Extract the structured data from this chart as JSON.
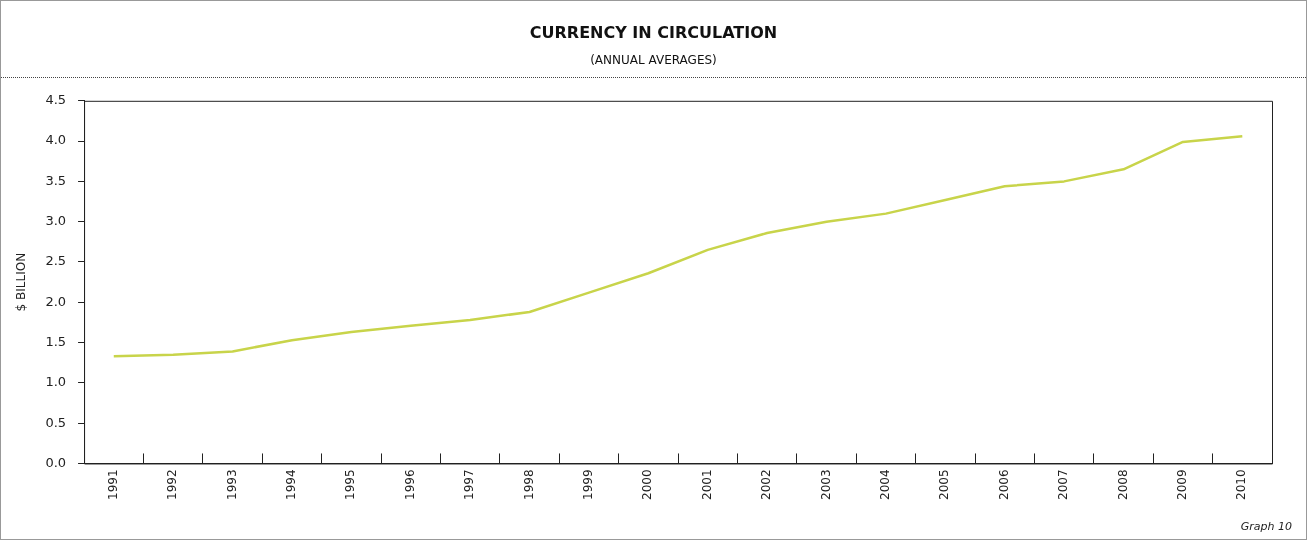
{
  "chart_data": {
    "type": "line",
    "title": "CURRENCY IN CIRCULATION",
    "subtitle": "(ANNUAL AVERAGES)",
    "ylabel": "$ BILLION",
    "categories": [
      "1991",
      "1992",
      "1993",
      "1994",
      "1995",
      "1996",
      "1997",
      "1998",
      "1999",
      "2000",
      "2001",
      "2002",
      "2003",
      "2004",
      "2005",
      "2006",
      "2007",
      "2008",
      "2009",
      "2010"
    ],
    "series": [
      {
        "color": "#c8d44a",
        "values": [
          1.33,
          1.35,
          1.39,
          1.53,
          1.63,
          1.71,
          1.78,
          1.88,
          2.12,
          2.36,
          2.65,
          2.86,
          3.0,
          3.1,
          3.27,
          3.44,
          3.5,
          3.65,
          3.99,
          4.06
        ]
      }
    ],
    "ylim": [
      0,
      4.5
    ],
    "yticks": [
      {
        "value": 0,
        "label": "0.0"
      },
      {
        "value": 0.5,
        "label": "0.5"
      },
      {
        "value": 1,
        "label": "1.0"
      },
      {
        "value": 1.5,
        "label": "1.5"
      },
      {
        "value": 2,
        "label": "2.0"
      },
      {
        "value": 2.5,
        "label": "2.5"
      },
      {
        "value": 3,
        "label": "3.0"
      },
      {
        "value": 3.5,
        "label": "3.5"
      },
      {
        "value": 4,
        "label": "4.0"
      },
      {
        "value": 4.5,
        "label": "4.5"
      }
    ],
    "grid": false,
    "legend": false,
    "annotations": [
      "Graph 10"
    ]
  }
}
